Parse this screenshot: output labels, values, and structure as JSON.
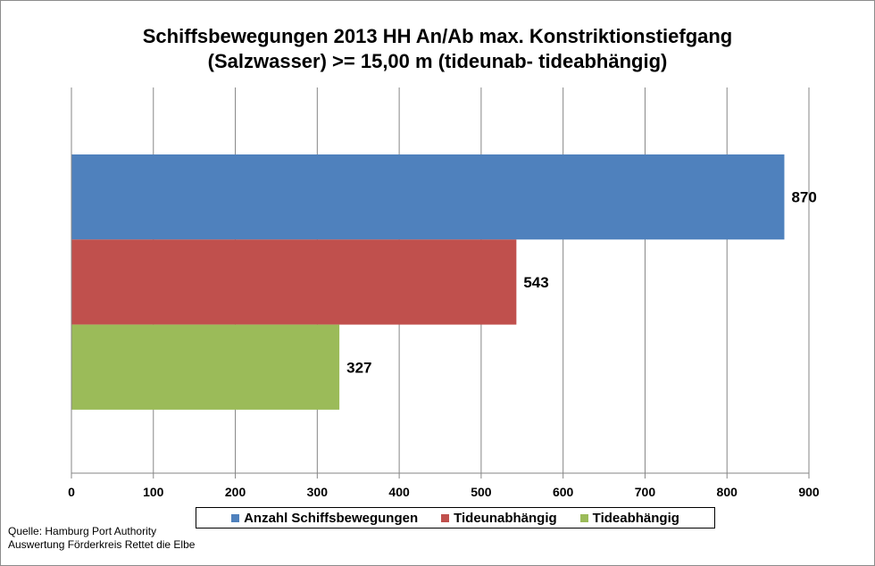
{
  "chart_data": {
    "type": "bar",
    "orientation": "horizontal",
    "title_line1": "Schiffsbewegungen 2013 HH An/Ab max. Konstriktionstiefgang",
    "title_line2": "(Salzwasser) >= 15,00 m (tideunab- tideabhängig)",
    "xlim": [
      0,
      900
    ],
    "xticks": [
      0,
      100,
      200,
      300,
      400,
      500,
      600,
      700,
      800,
      900
    ],
    "grid": true,
    "legend_position": "bottom",
    "series": [
      {
        "name": "Anzahl Schiffsbewegungen",
        "value": 870,
        "color": "#4f81bd"
      },
      {
        "name": "Tideunabhängig",
        "value": 543,
        "color": "#c0504d"
      },
      {
        "name": "Tideabhängig",
        "value": 327,
        "color": "#9bbb59"
      }
    ]
  },
  "source": {
    "line1": "Quelle: Hamburg Port Authority",
    "line2": "Auswertung Förderkreis Rettet  die Elbe"
  }
}
